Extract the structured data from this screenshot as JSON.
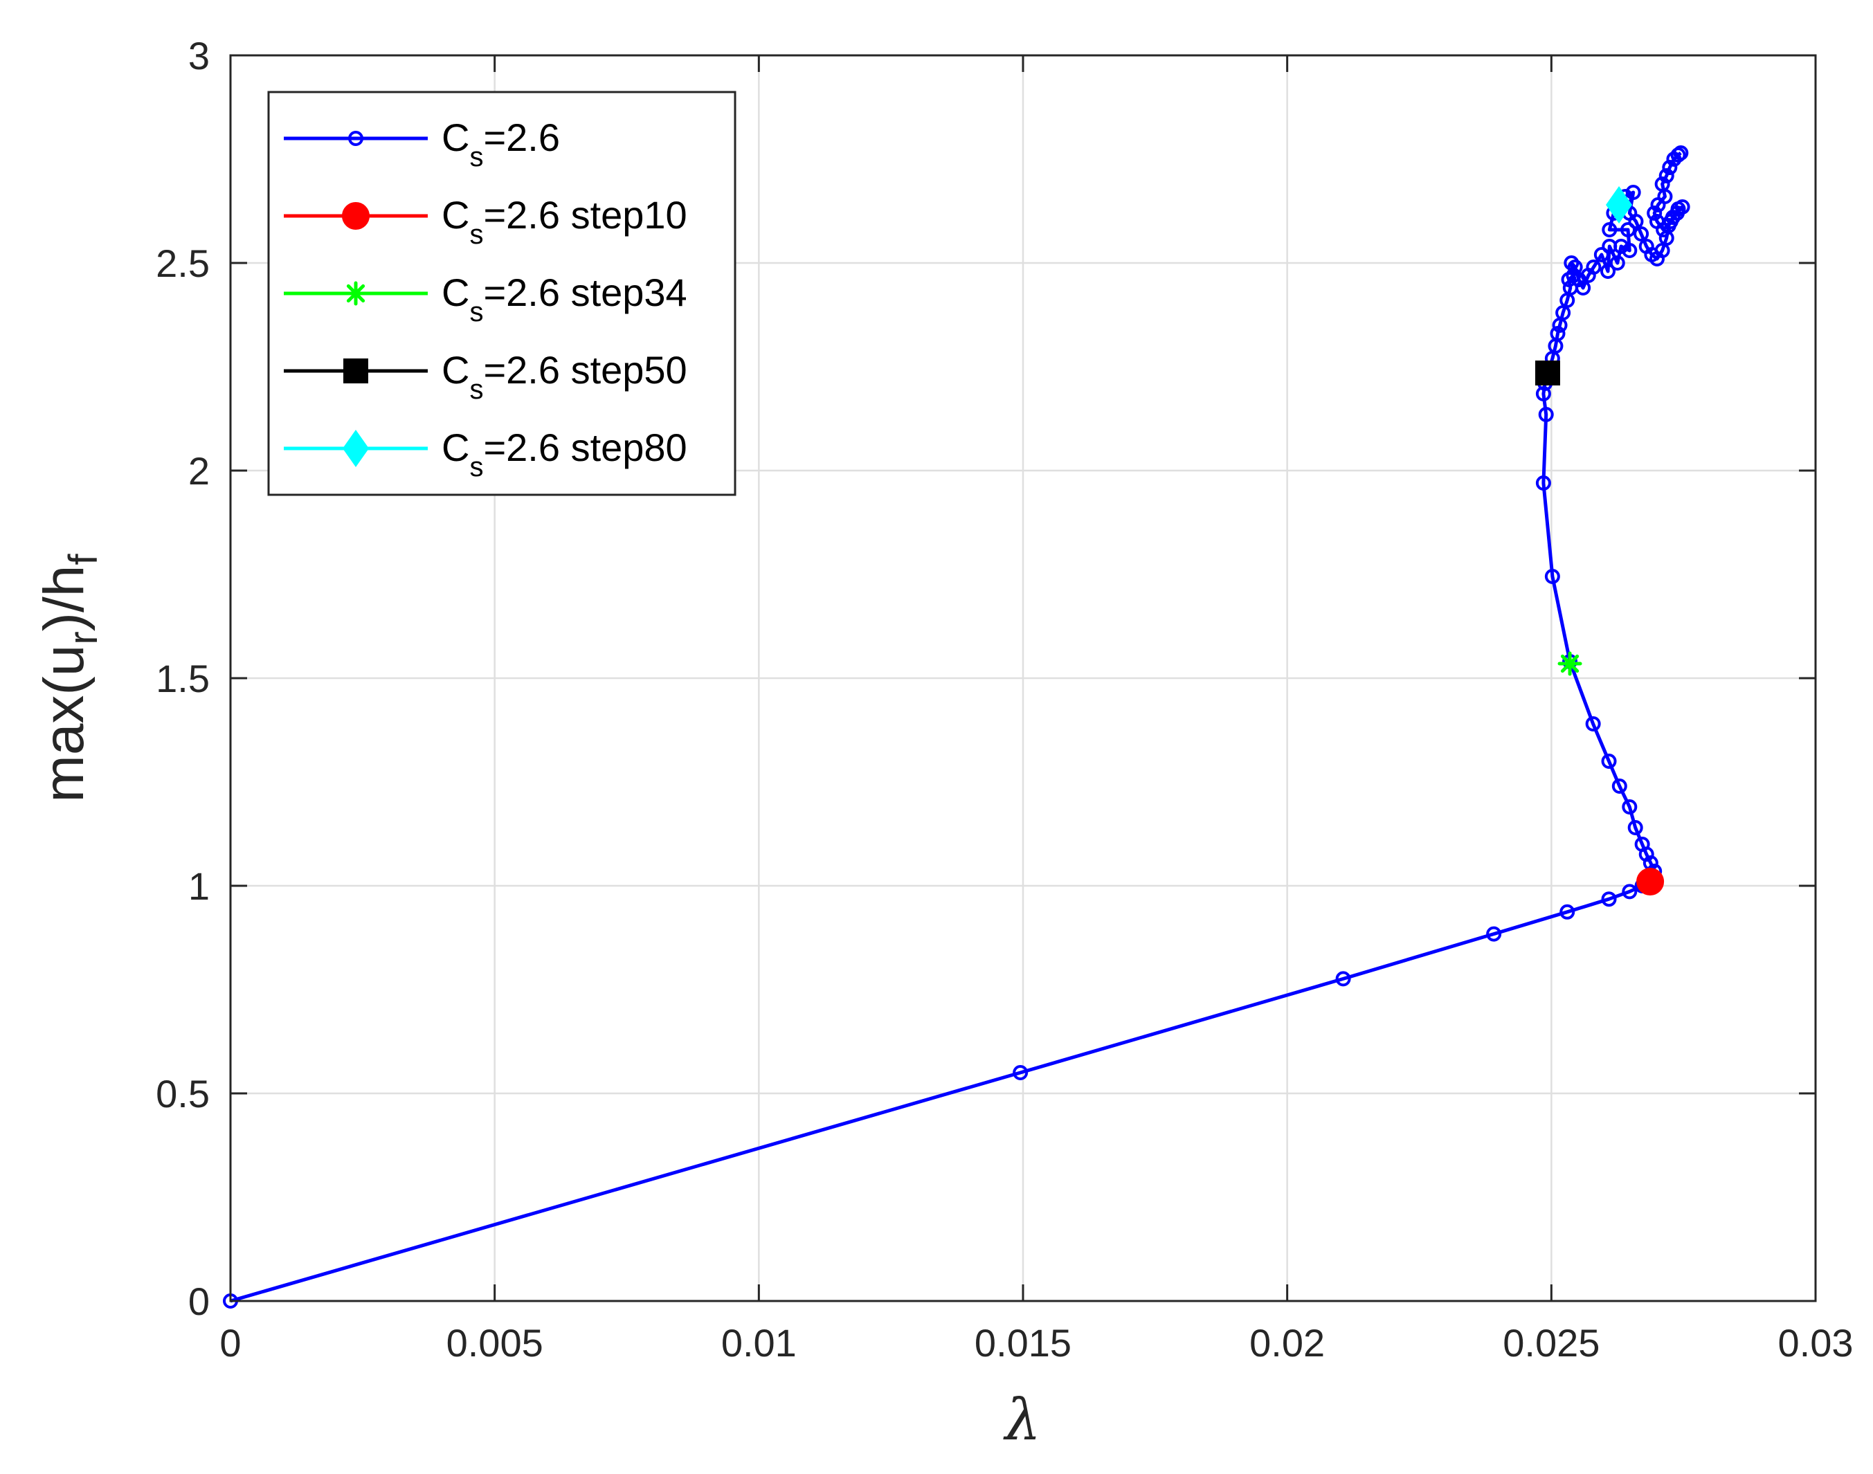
{
  "chart_data": {
    "type": "line",
    "xlabel": "λ",
    "ylabel": {
      "main": "max(u",
      "sub1": "r",
      "mid": ")/h",
      "sub2": "f"
    },
    "xlim": [
      0,
      0.03
    ],
    "ylim": [
      0,
      3
    ],
    "x_ticks": [
      0,
      0.005,
      0.01,
      0.015,
      0.02,
      0.025,
      0.03
    ],
    "x_tick_labels": [
      "0",
      "0.005",
      "0.01",
      "0.015",
      "0.02",
      "0.025",
      "0.03"
    ],
    "y_ticks": [
      0,
      0.5,
      1,
      1.5,
      2,
      2.5,
      3
    ],
    "y_tick_labels": [
      "0",
      "0.5",
      "1",
      "1.5",
      "2",
      "2.5",
      "3"
    ],
    "grid": true,
    "legend_position": "top-left",
    "series": [
      {
        "name": "C_s=2.6",
        "legend": {
          "main": "C",
          "sub": "s",
          "rest": "=2.6"
        },
        "color": "#0000ff",
        "marker": "circle-open",
        "points": [
          [
            0,
            0
          ],
          [
            0.01495,
            0.55
          ],
          [
            0.02106,
            0.776
          ],
          [
            0.02391,
            0.884
          ],
          [
            0.0253,
            0.937
          ],
          [
            0.02609,
            0.968
          ],
          [
            0.02648,
            0.986
          ],
          [
            0.02672,
            1.0
          ],
          [
            0.02688,
            1.015
          ],
          [
            0.02695,
            1.035
          ],
          [
            0.02688,
            1.055
          ],
          [
            0.0268,
            1.076
          ],
          [
            0.02672,
            1.1
          ],
          [
            0.02659,
            1.14
          ],
          [
            0.02648,
            1.19
          ],
          [
            0.02629,
            1.24
          ],
          [
            0.02609,
            1.3
          ],
          [
            0.02579,
            1.39
          ],
          [
            0.02535,
            1.54
          ],
          [
            0.02502,
            1.745
          ],
          [
            0.02485,
            1.97
          ],
          [
            0.0249,
            2.135
          ],
          [
            0.02485,
            2.185
          ],
          [
            0.02488,
            2.21
          ],
          [
            0.02493,
            2.235
          ],
          [
            0.02502,
            2.27
          ],
          [
            0.02508,
            2.3
          ],
          [
            0.02512,
            2.33
          ],
          [
            0.02516,
            2.35
          ],
          [
            0.02522,
            2.38
          ],
          [
            0.0253,
            2.41
          ],
          [
            0.02536,
            2.44
          ],
          [
            0.02533,
            2.46
          ],
          [
            0.02542,
            2.47
          ],
          [
            0.02538,
            2.5
          ],
          [
            0.02545,
            2.49
          ],
          [
            0.02552,
            2.46
          ],
          [
            0.0256,
            2.44
          ],
          [
            0.0257,
            2.47
          ],
          [
            0.0258,
            2.49
          ],
          [
            0.02595,
            2.52
          ],
          [
            0.02607,
            2.48
          ],
          [
            0.0261,
            2.54
          ],
          [
            0.02625,
            2.5
          ],
          [
            0.02632,
            2.54
          ],
          [
            0.02648,
            2.53
          ],
          [
            0.02645,
            2.58
          ],
          [
            0.0261,
            2.58
          ],
          [
            0.02618,
            2.62
          ],
          [
            0.0264,
            2.66
          ],
          [
            0.02655,
            2.67
          ],
          [
            0.02648,
            2.62
          ],
          [
            0.0266,
            2.6
          ],
          [
            0.0267,
            2.57
          ],
          [
            0.0268,
            2.54
          ],
          [
            0.0269,
            2.52
          ],
          [
            0.027,
            2.51
          ],
          [
            0.0271,
            2.53
          ],
          [
            0.02718,
            2.56
          ],
          [
            0.02722,
            2.59
          ],
          [
            0.0273,
            2.61
          ],
          [
            0.0274,
            2.63
          ],
          [
            0.02748,
            2.635
          ],
          [
            0.02738,
            2.62
          ],
          [
            0.02726,
            2.6
          ],
          [
            0.02712,
            2.58
          ],
          [
            0.027,
            2.6
          ],
          [
            0.02695,
            2.62
          ],
          [
            0.02702,
            2.64
          ],
          [
            0.02715,
            2.66
          ],
          [
            0.0271,
            2.69
          ],
          [
            0.02718,
            2.71
          ],
          [
            0.02724,
            2.73
          ],
          [
            0.02732,
            2.75
          ],
          [
            0.0274,
            2.76
          ],
          [
            0.02745,
            2.765
          ]
        ]
      },
      {
        "name": "C_s=2.6 step10",
        "legend": {
          "main": "C",
          "sub": "s",
          "rest": "=2.6 step10"
        },
        "color": "#ff0000",
        "marker": "circle-filled",
        "points": [
          [
            0.02687,
            1.01
          ]
        ]
      },
      {
        "name": "C_s=2.6 step34",
        "legend": {
          "main": "C",
          "sub": "s",
          "rest": "=2.6 step34"
        },
        "color": "#00ff00",
        "marker": "asterisk",
        "points": [
          [
            0.02535,
            1.535
          ]
        ]
      },
      {
        "name": "C_s=2.6 step50",
        "legend": {
          "main": "C",
          "sub": "s",
          "rest": "=2.6 step50"
        },
        "color": "#000000",
        "marker": "square-filled",
        "points": [
          [
            0.02493,
            2.235
          ]
        ]
      },
      {
        "name": "C_s=2.6 step80",
        "legend": {
          "main": "C",
          "sub": "s",
          "rest": "=2.6 step80"
        },
        "color": "#00ffff",
        "marker": "diamond-filled",
        "points": [
          [
            0.02628,
            2.64
          ]
        ]
      }
    ]
  }
}
